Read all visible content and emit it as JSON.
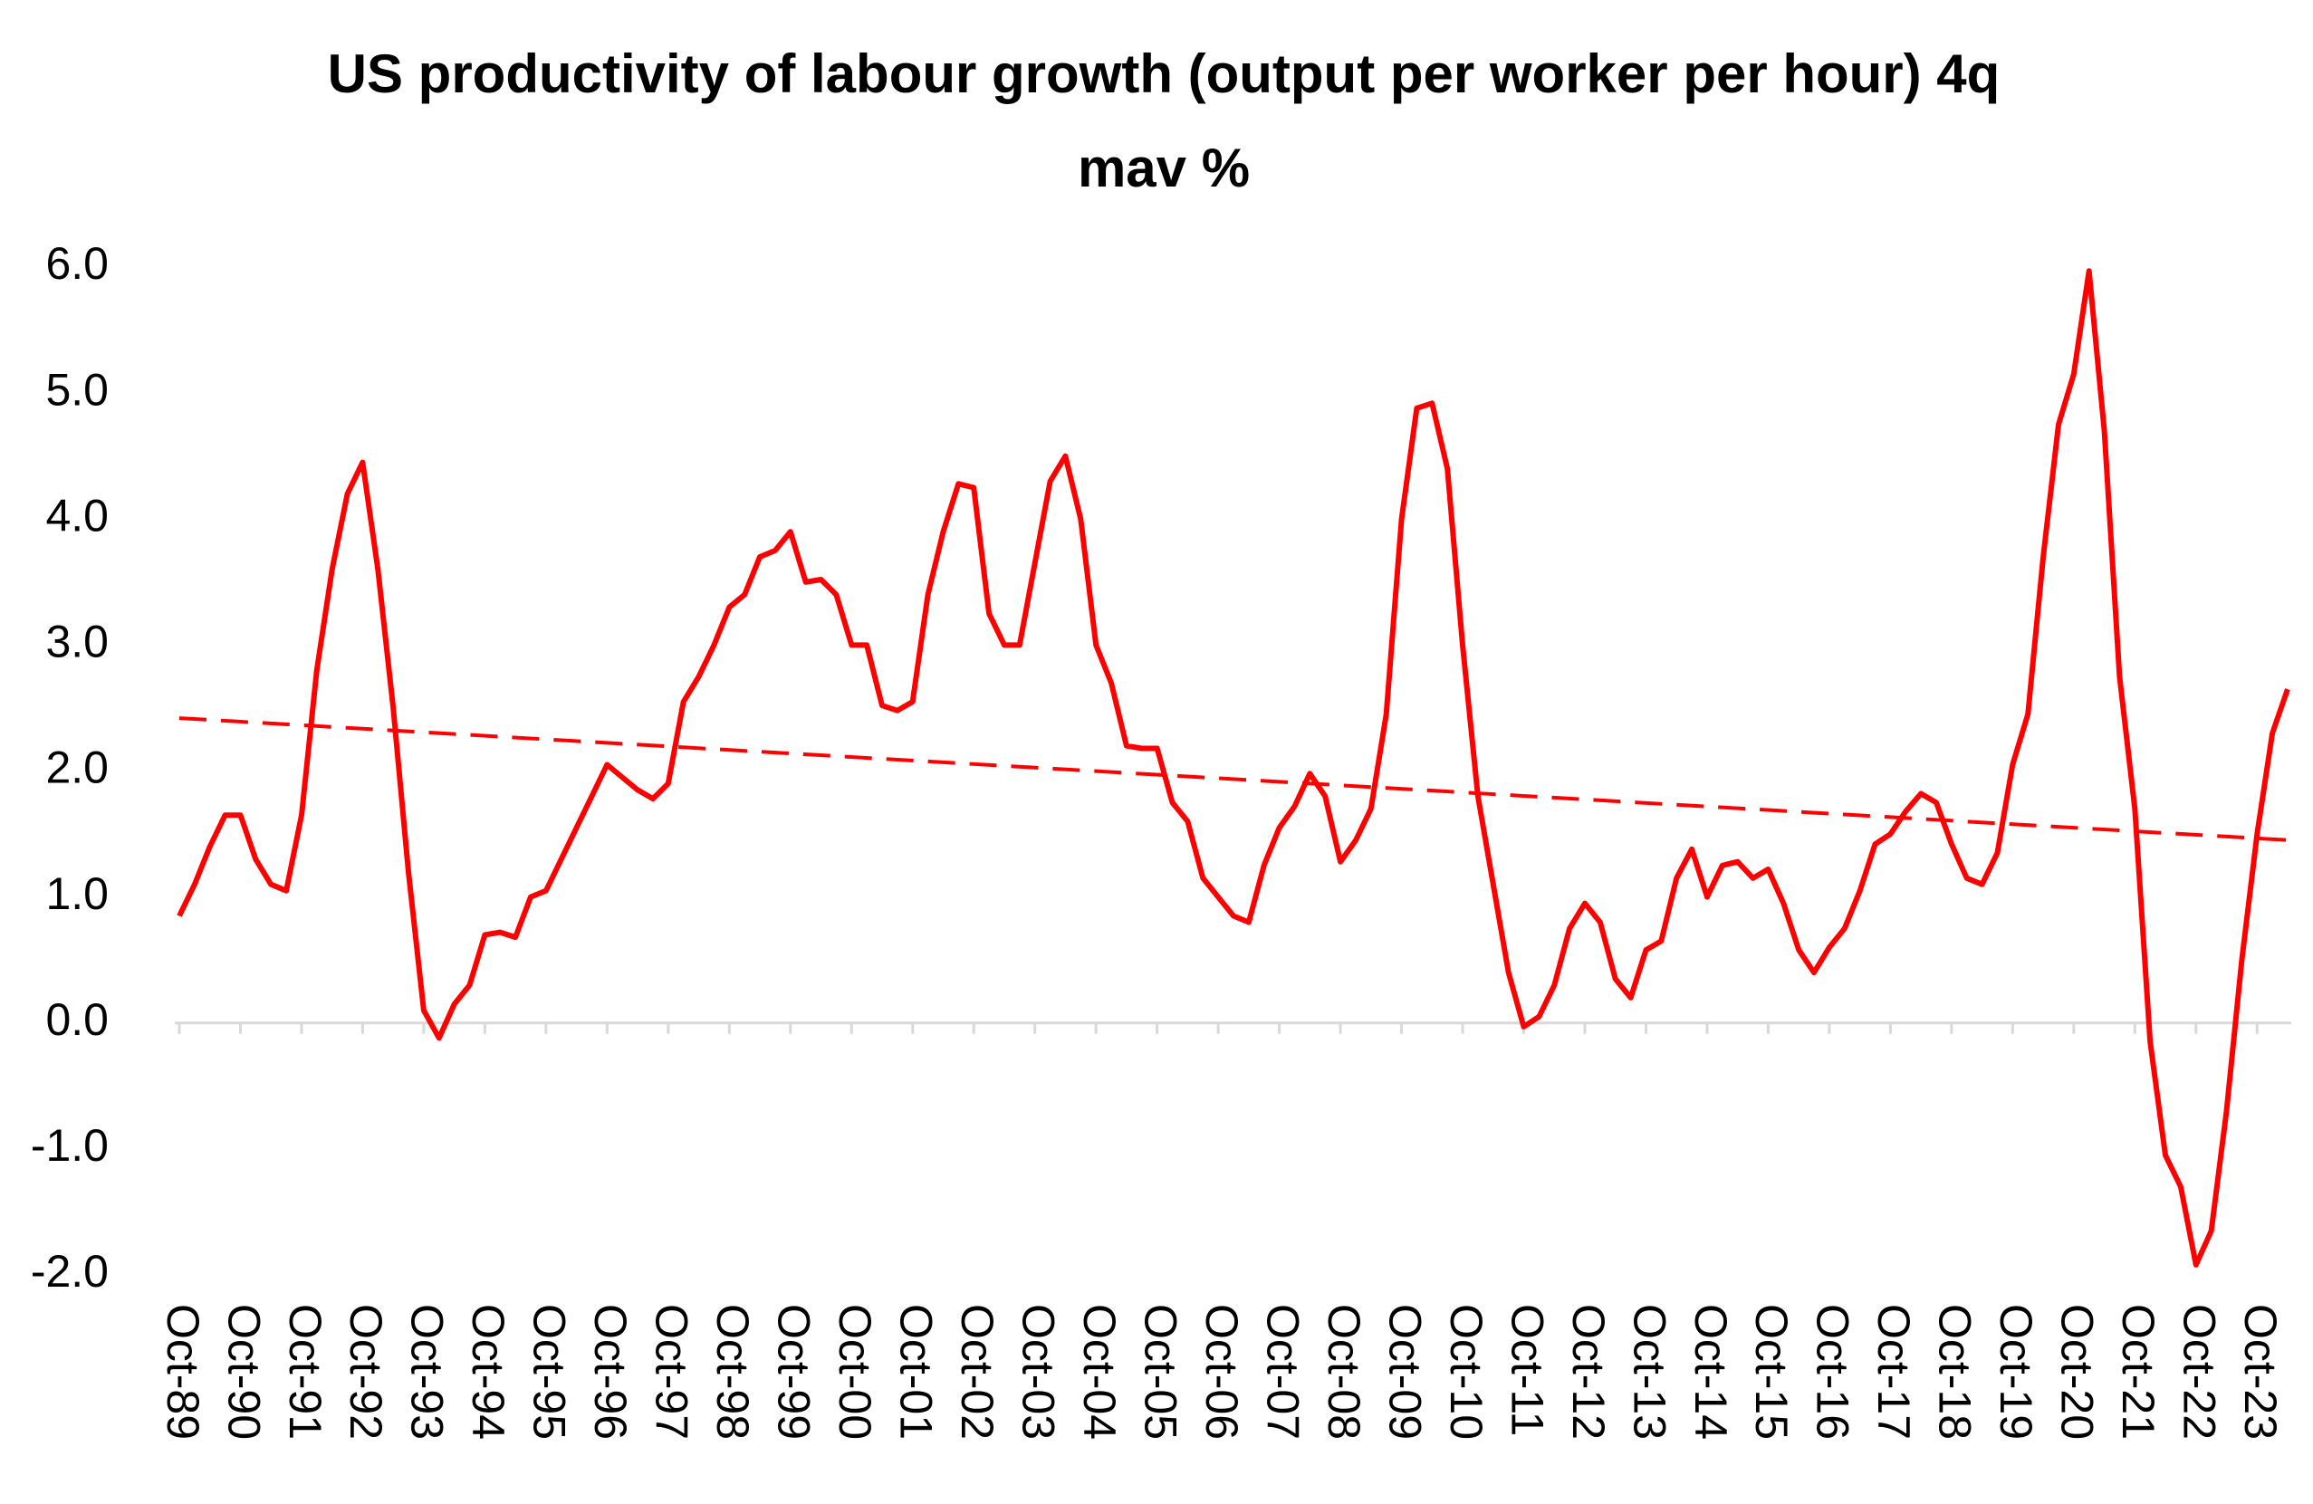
{
  "chart_data": {
    "type": "line",
    "title": "US productivity of labour growth (output per worker per hour) 4q mav %",
    "categories": [
      "Oct-89",
      null,
      null,
      null,
      "Oct-90",
      null,
      null,
      null,
      "Oct-91",
      null,
      null,
      null,
      "Oct-92",
      null,
      null,
      null,
      "Oct-93",
      null,
      null,
      null,
      "Oct-94",
      null,
      null,
      null,
      "Oct-95",
      null,
      null,
      null,
      "Oct-96",
      null,
      null,
      null,
      "Oct-97",
      null,
      null,
      null,
      "Oct-98",
      null,
      null,
      null,
      "Oct-99",
      null,
      null,
      null,
      "Oct-00",
      null,
      null,
      null,
      "Oct-01",
      null,
      null,
      null,
      "Oct-02",
      null,
      null,
      null,
      "Oct-03",
      null,
      null,
      null,
      "Oct-04",
      null,
      null,
      null,
      "Oct-05",
      null,
      null,
      null,
      "Oct-06",
      null,
      null,
      null,
      "Oct-07",
      null,
      null,
      null,
      "Oct-08",
      null,
      null,
      null,
      "Oct-09",
      null,
      null,
      null,
      "Oct-10",
      null,
      null,
      null,
      "Oct-11",
      null,
      null,
      null,
      "Oct-12",
      null,
      null,
      null,
      "Oct-13",
      null,
      null,
      null,
      "Oct-14",
      null,
      null,
      null,
      "Oct-15",
      null,
      null,
      null,
      "Oct-16",
      null,
      null,
      null,
      "Oct-17",
      null,
      null,
      null,
      "Oct-18",
      null,
      null,
      null,
      "Oct-19",
      null,
      null,
      null,
      "Oct-20",
      null,
      null,
      null,
      "Oct-21",
      null,
      null,
      null,
      "Oct-22",
      null,
      null,
      null,
      "Oct-23",
      null,
      null
    ],
    "values": [
      0.85,
      1.1,
      1.4,
      1.65,
      1.65,
      1.3,
      1.1,
      1.05,
      1.65,
      2.8,
      3.6,
      4.2,
      4.45,
      3.6,
      2.5,
      1.2,
      0.1,
      -0.12,
      0.15,
      0.3,
      0.7,
      0.72,
      0.68,
      1.0,
      1.05,
      1.3,
      1.55,
      1.8,
      2.05,
      1.95,
      1.85,
      1.78,
      1.9,
      2.55,
      2.75,
      3.0,
      3.3,
      3.4,
      3.7,
      3.75,
      3.9,
      3.5,
      3.52,
      3.4,
      3.0,
      3.0,
      2.52,
      2.48,
      2.55,
      3.4,
      3.9,
      4.28,
      4.25,
      3.25,
      3.0,
      3.0,
      3.65,
      4.3,
      4.5,
      4.0,
      3.0,
      2.7,
      2.2,
      2.18,
      2.18,
      1.75,
      1.6,
      1.15,
      1.0,
      0.85,
      0.8,
      1.25,
      1.55,
      1.72,
      1.98,
      1.8,
      1.28,
      1.45,
      1.7,
      2.45,
      4.0,
      4.88,
      4.92,
      4.4,
      3.0,
      1.8,
      1.1,
      0.4,
      -0.03,
      0.05,
      0.3,
      0.75,
      0.95,
      0.8,
      0.35,
      0.2,
      0.58,
      0.65,
      1.15,
      1.38,
      1.0,
      1.25,
      1.28,
      1.15,
      1.22,
      0.95,
      0.58,
      0.4,
      0.6,
      0.75,
      1.05,
      1.42,
      1.5,
      1.68,
      1.82,
      1.75,
      1.42,
      1.15,
      1.1,
      1.35,
      2.05,
      2.45,
      3.7,
      4.75,
      5.15,
      5.97,
      4.7,
      2.75,
      1.7,
      -0.15,
      -1.05,
      -1.3,
      -1.92,
      -1.65,
      -0.7,
      0.5,
      1.5,
      2.3,
      2.65
    ],
    "color": "#ff0000",
    "trend": {
      "start": 2.42,
      "end": 1.45,
      "color": "#ff0000",
      "dashed": true
    },
    "ylim": [
      -2,
      6
    ],
    "yticks": [
      {
        "value": -2,
        "label": "-2.0"
      },
      {
        "value": -1,
        "label": "-1.0"
      },
      {
        "value": 0,
        "label": "0.0"
      },
      {
        "value": 1,
        "label": "1.0"
      },
      {
        "value": 2,
        "label": "2.0"
      },
      {
        "value": 3,
        "label": "3.0"
      },
      {
        "value": 4,
        "label": "4.0"
      },
      {
        "value": 5,
        "label": "5.0"
      },
      {
        "value": 6,
        "label": "6.0"
      }
    ],
    "grid": false
  }
}
